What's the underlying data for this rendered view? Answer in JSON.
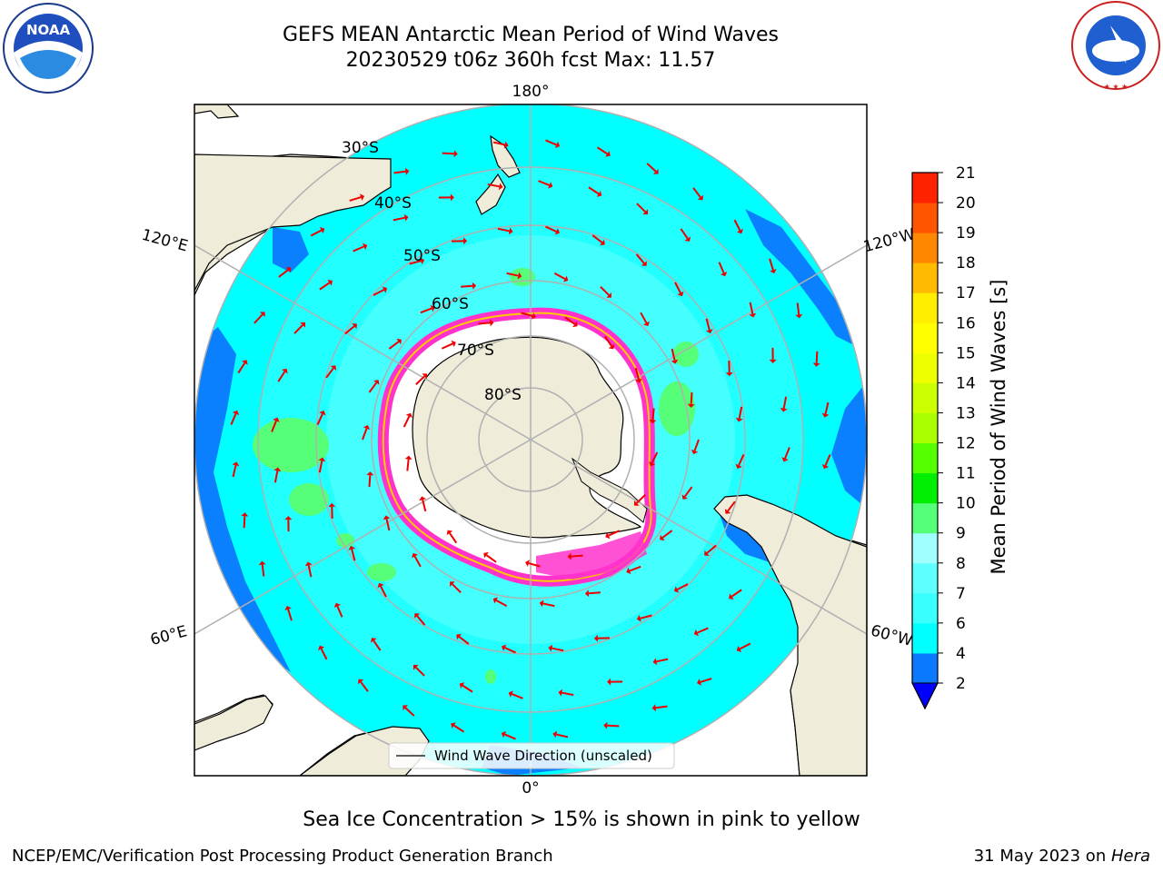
{
  "title": {
    "line1": "GEFS MEAN Antarctic Mean Period of Wind Waves",
    "line2": "20230529 t06z 360h fcst   Max: 11.57"
  },
  "logos": {
    "left": "NOAA",
    "left_ring_text": "NATIONAL OCEANIC AND ATMOSPHERIC ADMINISTRATION · U.S. DEPARTMENT OF COMMERCE",
    "right_ring_text": "NATIONAL WEATHER SERVICE"
  },
  "map": {
    "longitude_labels": [
      "180°",
      "120°E",
      "120°W",
      "60°E",
      "60°W",
      "0°"
    ],
    "latitude_labels": [
      "30°S",
      "40°S",
      "50°S",
      "60°S",
      "70°S",
      "80°S"
    ],
    "legend_label": "Wind Wave Direction (unscaled)",
    "colors": {
      "land": "#efecda",
      "ocean_main": "#00ffff",
      "ocean_light": "#55ffff",
      "ocean_low": "#0a80ff",
      "ice_pink": "#ff33cc",
      "arrow": "#ee0000"
    }
  },
  "colorbar": {
    "label": "Mean Period of Wind Waves [s]",
    "ticks": [
      "2",
      "4",
      "6",
      "7",
      "8",
      "9",
      "10",
      "11",
      "12",
      "13",
      "14",
      "15",
      "16",
      "17",
      "18",
      "19",
      "20",
      "21"
    ],
    "colors": [
      "#0a78ff",
      "#00ffff",
      "#3affff",
      "#5dffff",
      "#a0ffff",
      "#55ff77",
      "#00ee00",
      "#55ff00",
      "#aaff00",
      "#ccff00",
      "#eeff00",
      "#ffff00",
      "#ffee00",
      "#ffbb00",
      "#ff8800",
      "#ff5500",
      "#ff2200"
    ],
    "under_color": "#0000ff"
  },
  "caption": "Sea Ice Concentration > 15% is shown in pink to yellow",
  "footer": {
    "left": "NCEP/EMC/Verification Post Processing Product Generation Branch",
    "right_prefix": "31 May 2023 on ",
    "right_machine": "Hera"
  }
}
